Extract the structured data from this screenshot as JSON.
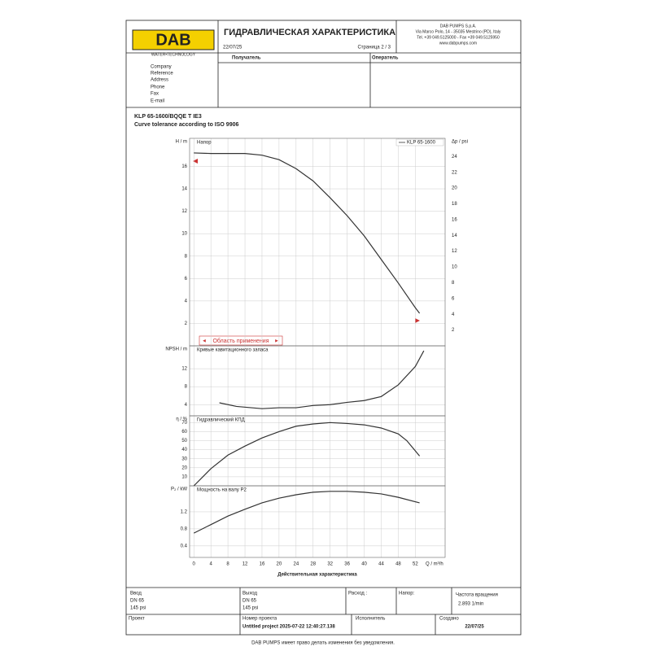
{
  "header": {
    "logo": "DAB",
    "logo_tagline": "WATER•TECHNOLOGY",
    "title": "ГИДРАВЛИЧЕСКАЯ ХАРАКТЕРИСТИКА",
    "date": "22/07/25",
    "page": "Страница 2 / 3",
    "company_lines": [
      "DAB PUMPS S.p.A.",
      "Via Marco Polo, 14 - 35035 Mestrino (PD), Italy",
      "Tel. +39 049.5125000 - Fax +39 049.5125950",
      "www.dabpumps.com"
    ]
  },
  "recipient": {
    "recipient_label": "Получатель",
    "operator_label": "Оператель",
    "fields": [
      "Company",
      "Reference",
      "Address",
      "Phone",
      "Fax",
      "E-mail"
    ]
  },
  "product": {
    "model": "KLP 65-1600/BQQE T IE3",
    "tolerance": "Curve tolerance according to ISO 9906"
  },
  "chart_data": [
    {
      "type": "line",
      "title": "Напор",
      "ylabel": "H / m",
      "y2label": "Δp / psi",
      "annotation": "Область применения",
      "legend": "upper right",
      "grid": true,
      "x": [
        0,
        4,
        8,
        12,
        16,
        20,
        24,
        28,
        32,
        36,
        40,
        44,
        48,
        52,
        53
      ],
      "series": [
        {
          "name": "KLP 65-1600",
          "color": "#333333",
          "values": [
            17.2,
            17.15,
            17.15,
            17.15,
            17.0,
            16.6,
            15.8,
            14.7,
            13.2,
            11.6,
            9.8,
            7.7,
            5.6,
            3.4,
            2.9
          ]
        }
      ],
      "ylim": [
        0,
        18.5
      ],
      "yticks": [
        2,
        4,
        6,
        8,
        10,
        12,
        14,
        16
      ],
      "y2lim": [
        0,
        26.3
      ],
      "y2ticks": [
        2,
        4,
        6,
        8,
        10,
        12,
        14,
        16,
        18,
        20,
        22,
        24
      ]
    },
    {
      "type": "line",
      "title": "Кривые кавитационного запаса",
      "ylabel": "NPSH / m",
      "grid": true,
      "x": [
        6,
        10,
        16,
        20,
        24,
        28,
        32,
        36,
        40,
        44,
        48,
        52,
        54
      ],
      "series": [
        {
          "color": "#333333",
          "values": [
            4.4,
            3.6,
            3.1,
            3.3,
            3.3,
            3.8,
            4.0,
            4.5,
            4.9,
            5.8,
            8.4,
            12.5,
            16.0
          ]
        }
      ],
      "ylim": [
        1.5,
        17.1
      ],
      "yticks": [
        4,
        8,
        12
      ]
    },
    {
      "type": "line",
      "title": "Гидравлический КПД",
      "ylabel": "η / %",
      "grid": true,
      "x": [
        0,
        4,
        8,
        12,
        16,
        20,
        24,
        28,
        32,
        36,
        40,
        44,
        48,
        50,
        53
      ],
      "series": [
        {
          "color": "#333333",
          "values": [
            0,
            19,
            34,
            44,
            53,
            60,
            66,
            68.5,
            70,
            69,
            67.5,
            64,
            57.5,
            50,
            33
          ]
        }
      ],
      "ylim": [
        0,
        77.5
      ],
      "yticks": [
        10,
        20,
        30,
        40,
        50,
        60,
        70
      ]
    },
    {
      "type": "line",
      "title": "Мощность на валу  P2",
      "ylabel": "P₂ / kW",
      "grid": true,
      "x": [
        0,
        4,
        8,
        12,
        16,
        20,
        24,
        28,
        32,
        36,
        40,
        44,
        48,
        53
      ],
      "series": [
        {
          "color": "#333333",
          "values": [
            0.7,
            0.9,
            1.1,
            1.26,
            1.41,
            1.52,
            1.6,
            1.66,
            1.68,
            1.68,
            1.66,
            1.62,
            1.54,
            1.41
          ]
        }
      ],
      "ylim": [
        0.13,
        1.81
      ],
      "yticks": [
        0.4,
        0.8,
        1.2
      ],
      "xlim": [
        -1,
        59
      ],
      "xticks": [
        0,
        4,
        8,
        12,
        16,
        20,
        24,
        28,
        32,
        36,
        40,
        44,
        48,
        52
      ],
      "xlabel": "Q / m³/h",
      "xtitle": "Действительная характеристика"
    }
  ],
  "footer": {
    "inlet": [
      "Ввод",
      "DN 65",
      "145 psi"
    ],
    "outlet": [
      "Выход",
      "DN 65",
      "145 psi"
    ],
    "flow": "Расход :",
    "head": "Напор:",
    "speed": [
      "Частота вращения",
      "2.893 1/min"
    ],
    "project": "Проект",
    "project_no": [
      "Номер проекта",
      "Untitled project 2025-07-22 12:40:27.138"
    ],
    "executor": "Исполнитель",
    "created": [
      "Создано",
      "22/07/25"
    ]
  },
  "disclaimer": "DAB PUMPS имеет право делать изменения без уведомления."
}
